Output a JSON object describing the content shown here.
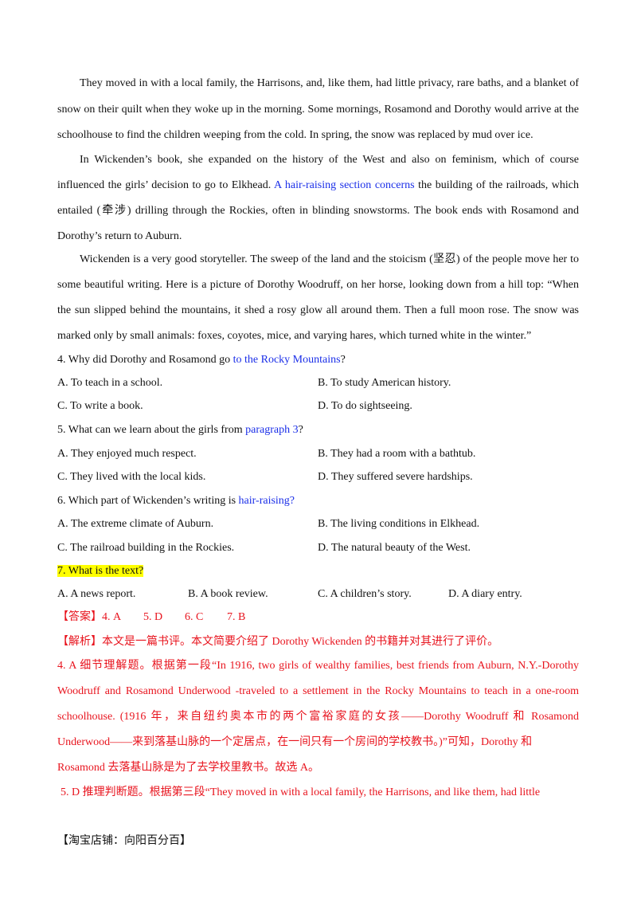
{
  "passage": [
    [
      "They moved in with a local family, the Harrisons, and, like them, had little privacy, rare baths, and a blanket of"
    ],
    [
      "snow on their quilt when they woke up in the morning. Some mornings, Rosamond and Dorothy would arrive at the"
    ],
    [
      "schoolhouse to find the children weeping from the cold. In spring, the snow was replaced by mud over ice."
    ],
    [
      "In Wickenden’s book, she expanded on the history of the West and also on feminism, which of course"
    ],
    [
      "influenced the girls’ decision to go to Elkhead.",
      "A hair-raising section concerns",
      "the building of the railroads, which"
    ],
    [
      "entailed (牵涉) drilling through the Rockies, often in blinding snowstorms. The book ends with Rosamond and"
    ],
    [
      "Dorothy’s return to Auburn."
    ],
    [
      "Wickenden is a very good storyteller. The sweep of the land and the stoicism (坚忍) of the people move her to"
    ],
    [
      "some beautiful writing. Here is a picture of Dorothy Woodruff, on her horse, looking down from a hill top: “When"
    ],
    [
      "the sun slipped behind the mountains, it shed a rosy glow all around them. Then a full moon rose. The snow was"
    ],
    [
      "marked only by small animals: foxes, coyotes, mice, and varying hares, which turned white in the winter.”"
    ]
  ],
  "questions": [
    {
      "stem": [
        "4. Why did Dorothy and Rosamond go",
        "to the Rocky Mountains",
        "?"
      ],
      "options": [
        "A. To teach in a school.",
        "B. To study American history.",
        "C. To write a book.",
        "D. To do sightseeing."
      ]
    },
    {
      "stem": [
        "5. What can we learn about the girls from",
        "paragraph 3",
        "?"
      ],
      "options": [
        "A. They enjoyed much respect.",
        "B. They had a room with a bathtub.",
        "C. They lived with the local kids.",
        "D. They suffered severe hardships."
      ]
    },
    {
      "stem": [
        "6. Which part of Wickenden’s writing is",
        "hair-raising?"
      ],
      "options": [
        "A. The extreme climate of Auburn.",
        "B. The living conditions in Elkhead.",
        "C. The railroad building in the Rockies.",
        "D. The natural beauty of the West."
      ]
    },
    {
      "stem": [
        "7. What is the text?"
      ],
      "options": [
        "A. A news report.",
        "B. A book review.",
        "C. A children’s story.",
        "D. A diary entry."
      ]
    }
  ],
  "answer": [
    "【答案】4. A",
    "5. D",
    "6. C",
    "7. B"
  ],
  "analysis": [
    "【解析】本文是一篇书评。本文简要介绍了 Dorothy Wickenden 的书籍并对其进行了评价。",
    "4. A 细节理解题。根据第一段“In 1916, two girls of wealthy families, best friends from Auburn, N.Y.-Dorothy",
    "Woodruff and Rosamond Underwood -traveled to a settlement in the Rocky Mountains to teach in a one-room",
    "schoolhouse. (1916 年，来自纽约奥本市的两个富裕家庭的女孩——Dorothy Woodruff 和 Rosamond",
    "Underwood——来到落基山脉的一个定居点，在一间只有一个房间的学校教书。)”可知，Dorothy 和",
    "Rosamond 去落基山脉是为了去学校里教书。故选 A。",
    "5. D 推理判断题。根据第三段“They moved in with a local family, the Harrisons, and like them, had little"
  ],
  "footer": "【淘宝店铺：向阳百分百】"
}
